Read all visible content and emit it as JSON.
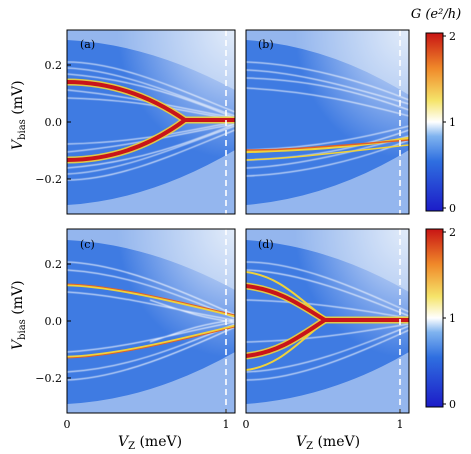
{
  "chart_data": [
    {
      "type": "heatmap",
      "panel_label": "(a)",
      "xlabel": "",
      "ylabel_main": "V",
      "ylabel_sub": "bias",
      "ylabel_unit": " (mV)",
      "xlim": [
        0,
        1.05
      ],
      "ylim": [
        -0.25,
        0.25
      ],
      "y_ticks": [
        "0.2",
        "0.0",
        "−0.2"
      ],
      "x_ticks": [],
      "dashed_line_x": 1.02,
      "zero_energy_peak_from_vz": 0.62,
      "conductance_peak_value": 2
    },
    {
      "type": "heatmap",
      "panel_label": "(b)",
      "xlim": [
        0,
        1.05
      ],
      "ylim": [
        -0.25,
        0.25
      ],
      "y_ticks": [],
      "x_ticks": [],
      "dashed_line_x": 1.02,
      "zero_energy_peak_from_vz": null
    },
    {
      "type": "heatmap",
      "panel_label": "(c)",
      "xlabel_main": "V",
      "xlabel_sub": "Z",
      "xlabel_unit": " (meV)",
      "ylabel_main": "V",
      "ylabel_sub": "bias",
      "ylabel_unit": " (mV)",
      "xlim": [
        0,
        1.05
      ],
      "ylim": [
        -0.25,
        0.25
      ],
      "y_ticks": [
        "0.2",
        "0.0",
        "−0.2"
      ],
      "x_ticks": [
        "0",
        "1"
      ],
      "dashed_line_x": 1.02,
      "zero_energy_peak_from_vz": null
    },
    {
      "type": "heatmap",
      "panel_label": "(d)",
      "xlabel_main": "V",
      "xlabel_sub": "Z",
      "xlabel_unit": " (meV)",
      "xlim": [
        0,
        1.05
      ],
      "ylim": [
        -0.25,
        0.25
      ],
      "y_ticks": [],
      "x_ticks": [
        "0",
        "1"
      ],
      "dashed_line_x": 1.02,
      "zero_energy_peak_from_vz": 0.45
    }
  ],
  "colorbar": {
    "title": "G (e²/h)",
    "ticks": [
      "2",
      "1",
      "0"
    ],
    "range": [
      0,
      2
    ],
    "colors": [
      "#1c1cc8",
      "#2f6fe0",
      "#7fb3ef",
      "#ffffff",
      "#f5e46a",
      "#f08a2a",
      "#c81414"
    ]
  }
}
